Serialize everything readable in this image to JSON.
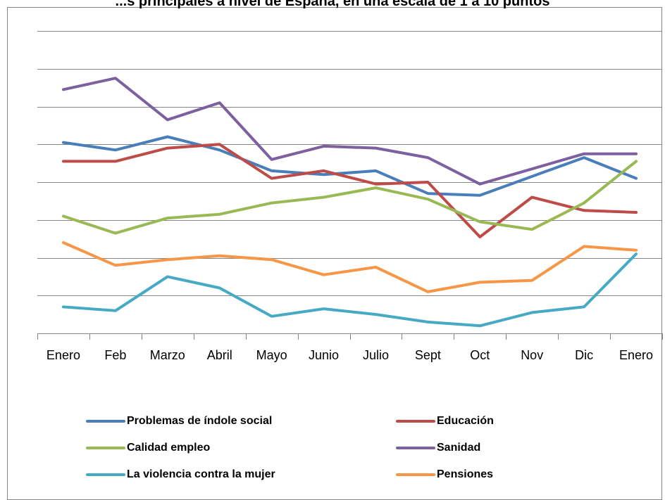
{
  "chart_data": {
    "type": "line",
    "title": "...s principales a nivel de España, en una escala de 1 a 10 puntos",
    "categories": [
      "Enero",
      "Feb",
      "Marzo",
      "Abril",
      "Mayo",
      "Junio",
      "Julio",
      "Sept",
      "Oct",
      "Nov",
      "Dic",
      "Enero"
    ],
    "ylim": [
      0,
      8
    ],
    "grid": true,
    "legend_position": "bottom",
    "series": [
      {
        "name": "Problemas de índole social",
        "color": "#4A7EBB",
        "values": [
          5.05,
          4.85,
          5.2,
          4.85,
          4.3,
          4.2,
          4.3,
          3.7,
          3.65,
          4.15,
          4.65,
          4.1
        ]
      },
      {
        "name": "Educación",
        "color": "#BE4B48",
        "values": [
          4.55,
          4.55,
          4.9,
          5.0,
          4.1,
          4.3,
          3.95,
          4.0,
          2.55,
          3.6,
          3.25,
          3.2
        ]
      },
      {
        "name": "Calidad empleo",
        "color": "#98B954",
        "values": [
          3.1,
          2.65,
          3.05,
          3.15,
          3.45,
          3.6,
          3.85,
          3.55,
          2.95,
          2.75,
          3.45,
          4.55
        ]
      },
      {
        "name": "Sanidad",
        "color": "#7D60A0",
        "values": [
          6.45,
          6.75,
          5.65,
          6.1,
          4.6,
          4.95,
          4.9,
          4.65,
          3.95,
          4.35,
          4.75,
          4.75
        ]
      },
      {
        "name": "La violencia contra la mujer",
        "color": "#46AAC5",
        "values": [
          0.7,
          0.6,
          1.5,
          1.2,
          0.45,
          0.65,
          0.5,
          0.3,
          0.2,
          0.55,
          0.7,
          2.1
        ]
      },
      {
        "name": "Pensiones",
        "color": "#F79646",
        "values": [
          2.4,
          1.8,
          1.95,
          2.05,
          1.95,
          1.55,
          1.75,
          1.1,
          1.35,
          1.4,
          2.3,
          2.2
        ]
      }
    ]
  }
}
